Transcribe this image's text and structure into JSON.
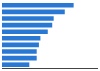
{
  "chart_data": {
    "type": "bar",
    "orientation": "horizontal",
    "categories": [
      null,
      null,
      null,
      null,
      null,
      null,
      null,
      null,
      null,
      null
    ],
    "values": [
      97,
      85,
      70,
      68,
      62,
      52,
      50,
      47,
      47,
      37
    ],
    "colors": [
      "#2979d4",
      "#2979d4",
      "#2979d4",
      "#2979d4",
      "#2979d4",
      "#2979d4",
      "#2979d4",
      "#2979d4",
      "#2979d4",
      "#2979d4"
    ],
    "xlim": [
      0,
      130
    ],
    "grid": false,
    "tick_labels": false
  }
}
